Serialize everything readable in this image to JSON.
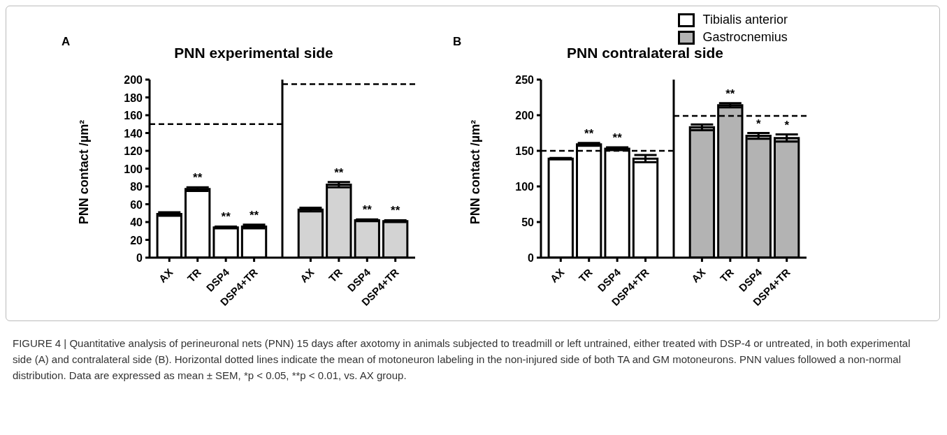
{
  "chart_data": [
    {
      "type": "bar",
      "title": "PNN experimental side",
      "ylabel": "PNN contact /µm²",
      "annotations": [
        "A"
      ],
      "categories": [
        "AX",
        "TR",
        "DSP4",
        "DSP4+TR",
        null,
        "AX",
        "TR",
        "DSP4",
        "DSP4+TR"
      ],
      "series": [
        {
          "color": "#ffffff",
          "values": [
            49,
            77,
            34,
            35,
            null,
            null,
            null,
            null,
            null
          ],
          "errors": [
            2,
            2,
            1,
            2,
            null,
            null,
            null,
            null,
            null
          ],
          "value_labels": [
            null,
            "**",
            "**",
            "**",
            null,
            null,
            null,
            null,
            null
          ]
        },
        {
          "color": "#d3d3d3",
          "values": [
            null,
            null,
            null,
            null,
            null,
            54,
            82,
            42,
            41
          ],
          "errors": [
            null,
            null,
            null,
            null,
            null,
            2,
            3,
            1,
            1
          ],
          "value_labels": [
            null,
            null,
            null,
            null,
            null,
            null,
            "**",
            "**",
            "**"
          ]
        }
      ],
      "ylim": [
        0,
        200
      ],
      "yticks": [
        0,
        20,
        40,
        60,
        80,
        100,
        120,
        140,
        160,
        180,
        200
      ],
      "ref_lines": [
        {
          "axis": "y",
          "value": 150,
          "line_style": "dashed"
        },
        {
          "axis": "y",
          "value": 195,
          "line_style": "dashed"
        }
      ]
    },
    {
      "type": "bar",
      "title": "PNN contralateral side",
      "ylabel": "PNN contact /µm²",
      "legend": "top right",
      "annotations": [
        "B",
        "FIGURE 4 | Quantitative analysis of perineuronal nets (PNN) 15 days after axotomy in animals subjected to treadmill or left untrained, either treated with DSP-4 or untreated, in both experimental side (A) and contralateral side (B). Horizontal dotted lines indicate the mean of motoneuron labeling in the non-injured side of both TA and GM motoneurons. PNN values followed a non-normal distribution. Data are expressed as mean ± SEM, *p < 0.05, **p < 0.01, vs. AX group."
      ],
      "categories": [
        "AX",
        "TR",
        "DSP4",
        "DSP4+TR",
        null,
        "AX",
        "TR",
        "DSP4",
        "DSP4+TR"
      ],
      "series": [
        {
          "name": "Tibialis anterior",
          "color": "#ffffff",
          "values": [
            139,
            159,
            153,
            139,
            null,
            null,
            null,
            null,
            null
          ],
          "errors": [
            1,
            2,
            2,
            5,
            null,
            null,
            null,
            null,
            null
          ],
          "value_labels": [
            null,
            "**",
            "**",
            null,
            null,
            null,
            null,
            null,
            null
          ]
        },
        {
          "name": "Gastrocnemius",
          "color": "#b3b3b3",
          "values": [
            null,
            null,
            null,
            null,
            null,
            183,
            214,
            171,
            168
          ],
          "errors": [
            null,
            null,
            null,
            null,
            null,
            4,
            3,
            4,
            5
          ],
          "value_labels": [
            null,
            null,
            null,
            null,
            null,
            null,
            "**",
            "*",
            "*"
          ]
        }
      ],
      "ylim": [
        0,
        250
      ],
      "yticks": [
        0,
        50,
        100,
        150,
        200,
        250
      ],
      "ref_lines": [
        {
          "axis": "y",
          "value": 150,
          "line_style": "dashed"
        },
        {
          "axis": "y",
          "value": 199,
          "line_style": "dashed"
        }
      ]
    }
  ]
}
